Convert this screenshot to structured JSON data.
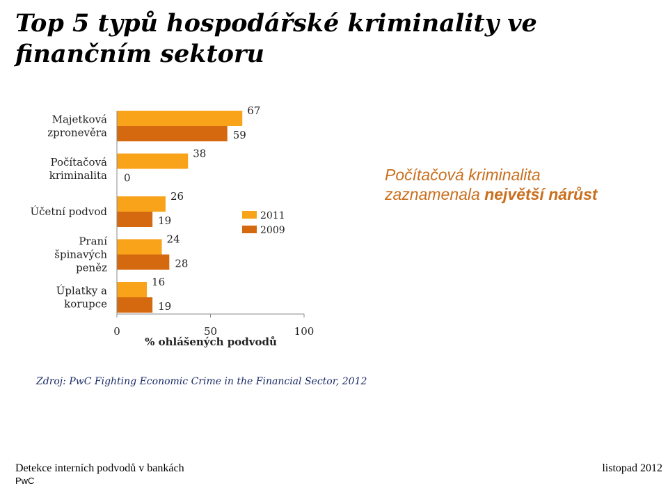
{
  "slide": {
    "title": "Top 5 typů hospodářské kriminality ve finančním sektoru",
    "callout_line1": "Počítačová kriminalita",
    "callout_line2_regular": "zaznamenala ",
    "callout_line2_bold": "největší nárůst",
    "source": "Zdroj: PwC Fighting Economic Crime in the Financial Sector, 2012",
    "footer_left": "Detekce interních podvodů v bankách",
    "footer_brand": "PwC",
    "footer_right": "listopad 2012"
  },
  "colors": {
    "series_2011": "#f9a31b",
    "series_2009": "#d4690f",
    "callout": "#c96f1e",
    "source": "#1a2a66"
  },
  "chart_data": {
    "type": "bar",
    "orientation": "horizontal",
    "categories": [
      "Majetková zpronevěra",
      "Počítačová kriminalita",
      "Účetní podvod",
      "Praní špinavých peněz",
      "Úplatky a korupce"
    ],
    "series": [
      {
        "name": "2011",
        "values": [
          67,
          38,
          26,
          24,
          16
        ]
      },
      {
        "name": "2009",
        "values": [
          59,
          0,
          19,
          28,
          19
        ]
      }
    ],
    "xlabel": "% ohlášených podvodů",
    "xlim": [
      0,
      100
    ],
    "xticks": [
      "0",
      "50",
      "100"
    ],
    "legend": [
      "2011",
      "2009"
    ],
    "legend_position": "right"
  }
}
